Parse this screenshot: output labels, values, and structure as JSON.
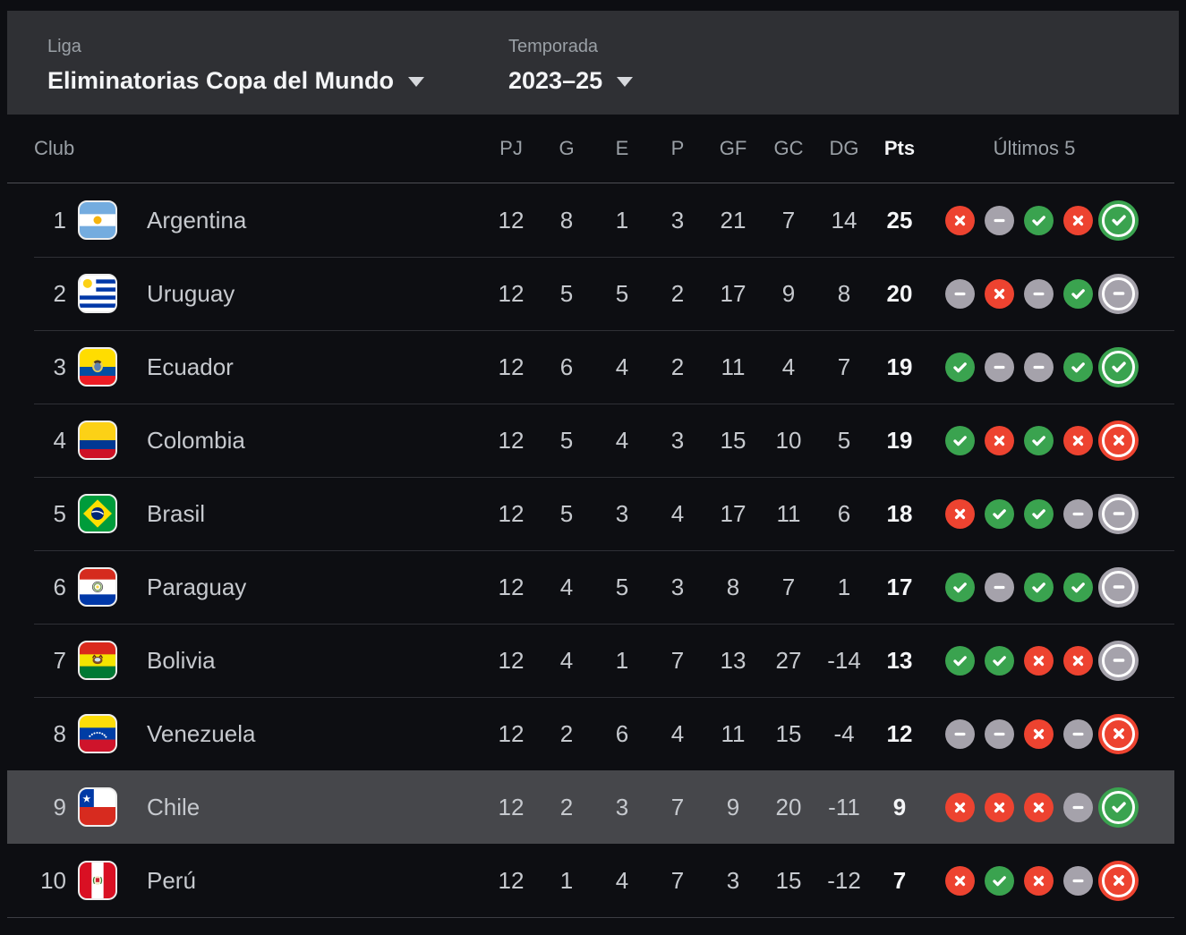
{
  "header": {
    "league_label": "Liga",
    "league_value": "Eliminatorias Copa del Mundo",
    "season_label": "Temporada",
    "season_value": "2023–25"
  },
  "table": {
    "columns": {
      "club": "Club",
      "pj": "PJ",
      "g": "G",
      "e": "E",
      "p": "P",
      "gf": "GF",
      "gc": "GC",
      "dg": "DG",
      "pts": "Pts",
      "last5": "Últimos 5"
    },
    "rows": [
      {
        "rank": "1",
        "team": "Argentina",
        "flag": "argentina",
        "pj": "12",
        "g": "8",
        "e": "1",
        "p": "3",
        "gf": "21",
        "gc": "7",
        "dg": "14",
        "pts": "25",
        "last5": [
          "loss",
          "draw",
          "win",
          "loss",
          "win"
        ],
        "highlighted": false
      },
      {
        "rank": "2",
        "team": "Uruguay",
        "flag": "uruguay",
        "pj": "12",
        "g": "5",
        "e": "5",
        "p": "2",
        "gf": "17",
        "gc": "9",
        "dg": "8",
        "pts": "20",
        "last5": [
          "draw",
          "loss",
          "draw",
          "win",
          "draw"
        ],
        "highlighted": false
      },
      {
        "rank": "3",
        "team": "Ecuador",
        "flag": "ecuador",
        "pj": "12",
        "g": "6",
        "e": "4",
        "p": "2",
        "gf": "11",
        "gc": "4",
        "dg": "7",
        "pts": "19",
        "last5": [
          "win",
          "draw",
          "draw",
          "win",
          "win"
        ],
        "highlighted": false
      },
      {
        "rank": "4",
        "team": "Colombia",
        "flag": "colombia",
        "pj": "12",
        "g": "5",
        "e": "4",
        "p": "3",
        "gf": "15",
        "gc": "10",
        "dg": "5",
        "pts": "19",
        "last5": [
          "win",
          "loss",
          "win",
          "loss",
          "loss"
        ],
        "highlighted": false
      },
      {
        "rank": "5",
        "team": "Brasil",
        "flag": "brasil",
        "pj": "12",
        "g": "5",
        "e": "3",
        "p": "4",
        "gf": "17",
        "gc": "11",
        "dg": "6",
        "pts": "18",
        "last5": [
          "loss",
          "win",
          "win",
          "draw",
          "draw"
        ],
        "highlighted": false
      },
      {
        "rank": "6",
        "team": "Paraguay",
        "flag": "paraguay",
        "pj": "12",
        "g": "4",
        "e": "5",
        "p": "3",
        "gf": "8",
        "gc": "7",
        "dg": "1",
        "pts": "17",
        "last5": [
          "win",
          "draw",
          "win",
          "win",
          "draw"
        ],
        "highlighted": false
      },
      {
        "rank": "7",
        "team": "Bolivia",
        "flag": "bolivia",
        "pj": "12",
        "g": "4",
        "e": "1",
        "p": "7",
        "gf": "13",
        "gc": "27",
        "dg": "-14",
        "pts": "13",
        "last5": [
          "win",
          "win",
          "loss",
          "loss",
          "draw"
        ],
        "highlighted": false
      },
      {
        "rank": "8",
        "team": "Venezuela",
        "flag": "venezuela",
        "pj": "12",
        "g": "2",
        "e": "6",
        "p": "4",
        "gf": "11",
        "gc": "15",
        "dg": "-4",
        "pts": "12",
        "last5": [
          "draw",
          "draw",
          "loss",
          "draw",
          "loss"
        ],
        "highlighted": false
      },
      {
        "rank": "9",
        "team": "Chile",
        "flag": "chile",
        "pj": "12",
        "g": "2",
        "e": "3",
        "p": "7",
        "gf": "9",
        "gc": "20",
        "dg": "-11",
        "pts": "9",
        "last5": [
          "loss",
          "loss",
          "loss",
          "draw",
          "win"
        ],
        "highlighted": true
      },
      {
        "rank": "10",
        "team": "Perú",
        "flag": "peru",
        "pj": "12",
        "g": "1",
        "e": "4",
        "p": "7",
        "gf": "3",
        "gc": "15",
        "dg": "-12",
        "pts": "7",
        "last5": [
          "loss",
          "win",
          "loss",
          "draw",
          "loss"
        ],
        "highlighted": false
      }
    ]
  },
  "icons": {
    "win": "check-circle-icon",
    "draw": "dash-circle-icon",
    "loss": "cross-circle-icon",
    "dropdown": "chevron-down-icon"
  },
  "colors": {
    "win": "#3aa34f",
    "loss": "#ed4330",
    "draw": "#a5a2ab",
    "row_highlight": "#46474b",
    "header_bar": "#2f3034",
    "background": "#0d0e12"
  }
}
